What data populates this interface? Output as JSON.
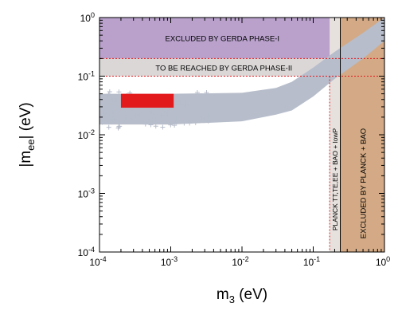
{
  "chart_data": {
    "type": "scatter",
    "title": "",
    "x_scale": "log",
    "y_scale": "log",
    "xlim": [
      0.0001,
      1
    ],
    "ylim": [
      0.0001,
      1
    ],
    "grid": false,
    "legend": "none",
    "x_ticks": [
      {
        "base": "10",
        "exp": "-4",
        "value": 0.0001
      },
      {
        "base": "10",
        "exp": "-3",
        "value": 0.001
      },
      {
        "base": "10",
        "exp": "-2",
        "value": 0.01
      },
      {
        "base": "10",
        "exp": "-1",
        "value": 0.1
      },
      {
        "base": "10",
        "exp": "0",
        "value": 1
      }
    ],
    "y_ticks": [
      {
        "base": "10",
        "exp": "-4",
        "value": 0.0001
      },
      {
        "base": "10",
        "exp": "-3",
        "value": 0.001
      },
      {
        "base": "10",
        "exp": "-2",
        "value": 0.01
      },
      {
        "base": "10",
        "exp": "-1",
        "value": 0.1
      },
      {
        "base": "10",
        "exp": "0",
        "value": 1
      }
    ],
    "xlabel": {
      "main": "m",
      "sub": "3",
      "unit": "  (eV)"
    },
    "ylabel": {
      "pre": "|m",
      "sub": "ee",
      "post": "| (eV)"
    },
    "regions": [
      {
        "id": "gerda-phase-1",
        "label": "EXCLUDED BY GERDA PHASE-I",
        "x_range": [
          0.0001,
          0.24
        ],
        "y_range": [
          0.2,
          1
        ],
        "fill": "#b9a1cc"
      },
      {
        "id": "gerda-phase-2",
        "label": "TO BE REACHED BY GERDA PHASE-II",
        "x_range": [
          0.0001,
          0.24
        ],
        "y_range": [
          0.1,
          0.2
        ],
        "fill": "#dbd7d7"
      },
      {
        "id": "planck-tt-te-ee",
        "label": "PLANCK TT,TE,EE + BAO + lowP",
        "x_range": [
          0.17,
          0.24
        ],
        "y_range": [
          0.0001,
          1
        ],
        "fill": "#e7e1de"
      },
      {
        "id": "planck-bao",
        "label": "EXCLUDED BY PLANCK + BAO",
        "x_range": [
          0.24,
          1
        ],
        "y_range": [
          0.0001,
          1
        ],
        "fill": "#d3aa85"
      }
    ],
    "allowed_band": {
      "color": "#b7bdca",
      "lower": [
        {
          "x": 0.0001,
          "y": 0.015
        },
        {
          "x": 0.001,
          "y": 0.015
        },
        {
          "x": 0.01,
          "y": 0.017
        },
        {
          "x": 0.03,
          "y": 0.022
        },
        {
          "x": 0.05,
          "y": 0.026
        },
        {
          "x": 0.1,
          "y": 0.045
        },
        {
          "x": 0.2,
          "y": 0.09
        },
        {
          "x": 0.5,
          "y": 0.2
        },
        {
          "x": 1,
          "y": 0.4
        }
      ],
      "upper": [
        {
          "x": 0.0001,
          "y": 0.05
        },
        {
          "x": 0.001,
          "y": 0.05
        },
        {
          "x": 0.01,
          "y": 0.052
        },
        {
          "x": 0.03,
          "y": 0.063
        },
        {
          "x": 0.05,
          "y": 0.08
        },
        {
          "x": 0.1,
          "y": 0.14
        },
        {
          "x": 0.2,
          "y": 0.26
        },
        {
          "x": 0.5,
          "y": 0.55
        },
        {
          "x": 1,
          "y": 1
        }
      ]
    },
    "highlight_box": {
      "x_range": [
        0.0002,
        0.0011
      ],
      "y_range": [
        0.029,
        0.05
      ],
      "color": "#e31a1c"
    },
    "dashed_lines": [
      {
        "orientation": "horizontal",
        "y": 0.2,
        "x_range": [
          0.0001,
          1
        ],
        "color": "#e31a1c"
      },
      {
        "orientation": "horizontal",
        "y": 0.1,
        "x_range": [
          0.0001,
          1
        ],
        "color": "#e31a1c"
      },
      {
        "orientation": "vertical",
        "x": 0.17,
        "y_range": [
          0.0001,
          0.1
        ],
        "color": "#e31a1c"
      }
    ],
    "solid_lines": [
      {
        "orientation": "vertical",
        "x": 0.24,
        "y_range": [
          0.0001,
          1
        ],
        "color": "#000000"
      }
    ]
  }
}
